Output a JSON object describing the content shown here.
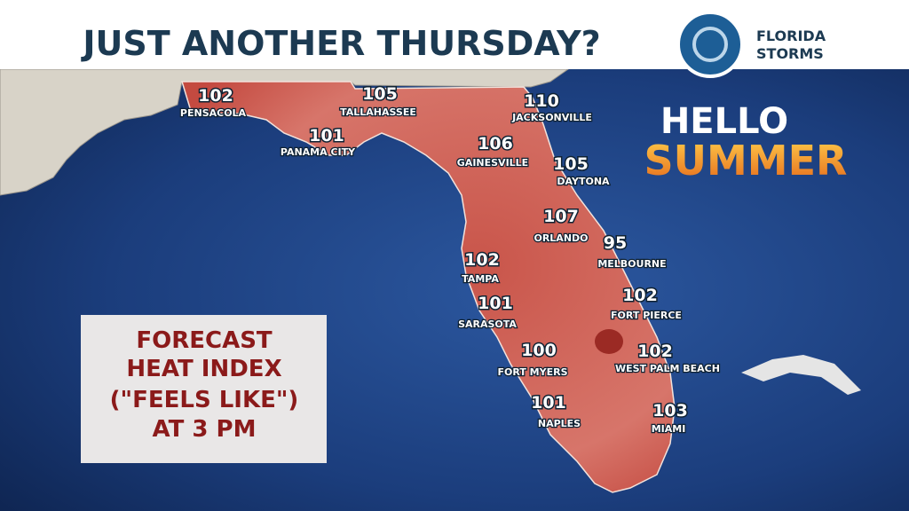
{
  "header": {
    "title": "JUST ANOTHER THURSDAY?",
    "logo_line_1": "FLORIDA",
    "logo_line_2": "STORMS"
  },
  "banner": {
    "line_1": "HELLO",
    "line_2": "SUMMER"
  },
  "info_box": {
    "lines": [
      "FORECAST",
      "HEAT INDEX",
      "(\"FEELS LIKE\")",
      "AT 3 PM"
    ]
  },
  "cities": [
    {
      "name": "PENSACOLA",
      "value": "102"
    },
    {
      "name": "PANAMA CITY",
      "value": "101"
    },
    {
      "name": "TALLAHASSEE",
      "value": "105"
    },
    {
      "name": "JACKSONVILLE",
      "value": "110"
    },
    {
      "name": "GAINESVILLE",
      "value": "106"
    },
    {
      "name": "DAYTONA",
      "value": "105"
    },
    {
      "name": "ORLANDO",
      "value": "107"
    },
    {
      "name": "MELBOURNE",
      "value": "95"
    },
    {
      "name": "TAMPA",
      "value": "102"
    },
    {
      "name": "SARASOTA",
      "value": "101"
    },
    {
      "name": "FORT PIERCE",
      "value": "102"
    },
    {
      "name": "FORT MYERS",
      "value": "100"
    },
    {
      "name": "WEST PALM BEACH",
      "value": "102"
    },
    {
      "name": "NAPLES",
      "value": "101"
    },
    {
      "name": "MIAMI",
      "value": "103"
    }
  ]
}
